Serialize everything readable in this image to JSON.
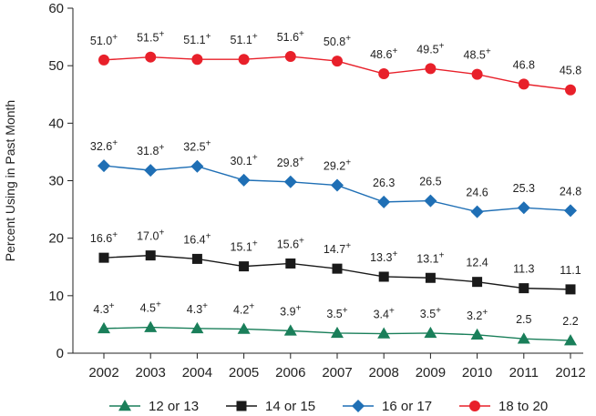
{
  "chart_data": {
    "type": "line",
    "title": "",
    "xlabel": "",
    "ylabel": "Percent Using in Past Month",
    "ylim": [
      0,
      60
    ],
    "yticks": [
      "0",
      "10",
      "20",
      "30",
      "40",
      "50",
      "60"
    ],
    "x": [
      "2002",
      "2003",
      "2004",
      "2005",
      "2006",
      "2007",
      "2008",
      "2009",
      "2010",
      "2011",
      "2012"
    ],
    "legend_position": "bottom",
    "grid": false,
    "series": [
      {
        "name": "12 or 13",
        "color": "#1a7f5a",
        "marker": "triangle",
        "values": [
          4.3,
          4.5,
          4.3,
          4.2,
          3.9,
          3.5,
          3.4,
          3.5,
          3.2,
          2.5,
          2.2
        ],
        "labels": [
          "4.3",
          "4.5",
          "4.3",
          "4.2",
          "3.9",
          "3.5",
          "3.4",
          "3.5",
          "3.2",
          "2.5",
          "2.2"
        ],
        "plus": [
          true,
          true,
          true,
          true,
          true,
          true,
          true,
          true,
          true,
          false,
          false
        ]
      },
      {
        "name": "14 or 15",
        "color": "#1a1a1a",
        "marker": "square",
        "values": [
          16.6,
          17.0,
          16.4,
          15.1,
          15.6,
          14.7,
          13.3,
          13.1,
          12.4,
          11.3,
          11.1
        ],
        "labels": [
          "16.6",
          "17.0",
          "16.4",
          "15.1",
          "15.6",
          "14.7",
          "13.3",
          "13.1",
          "12.4",
          "11.3",
          "11.1"
        ],
        "plus": [
          true,
          true,
          true,
          true,
          true,
          true,
          true,
          true,
          false,
          false,
          false
        ]
      },
      {
        "name": "16 or 17",
        "color": "#1f6fb5",
        "marker": "diamond",
        "values": [
          32.6,
          31.8,
          32.5,
          30.1,
          29.8,
          29.2,
          26.3,
          26.5,
          24.6,
          25.3,
          24.8
        ],
        "labels": [
          "32.6",
          "31.8",
          "32.5",
          "30.1",
          "29.8",
          "29.2",
          "26.3",
          "26.5",
          "24.6",
          "25.3",
          "24.8"
        ],
        "plus": [
          true,
          true,
          true,
          true,
          true,
          true,
          false,
          false,
          false,
          false,
          false
        ]
      },
      {
        "name": "18 to 20",
        "color": "#e8202a",
        "marker": "circle",
        "values": [
          51.0,
          51.5,
          51.1,
          51.1,
          51.6,
          50.8,
          48.6,
          49.5,
          48.5,
          46.8,
          45.8
        ],
        "labels": [
          "51.0",
          "51.5",
          "51.1",
          "51.1",
          "51.6",
          "50.8",
          "48.6",
          "49.5",
          "48.5",
          "46.8",
          "45.8"
        ],
        "plus": [
          true,
          true,
          true,
          true,
          true,
          true,
          true,
          true,
          true,
          false,
          false
        ]
      }
    ],
    "plus_symbol": "+"
  }
}
